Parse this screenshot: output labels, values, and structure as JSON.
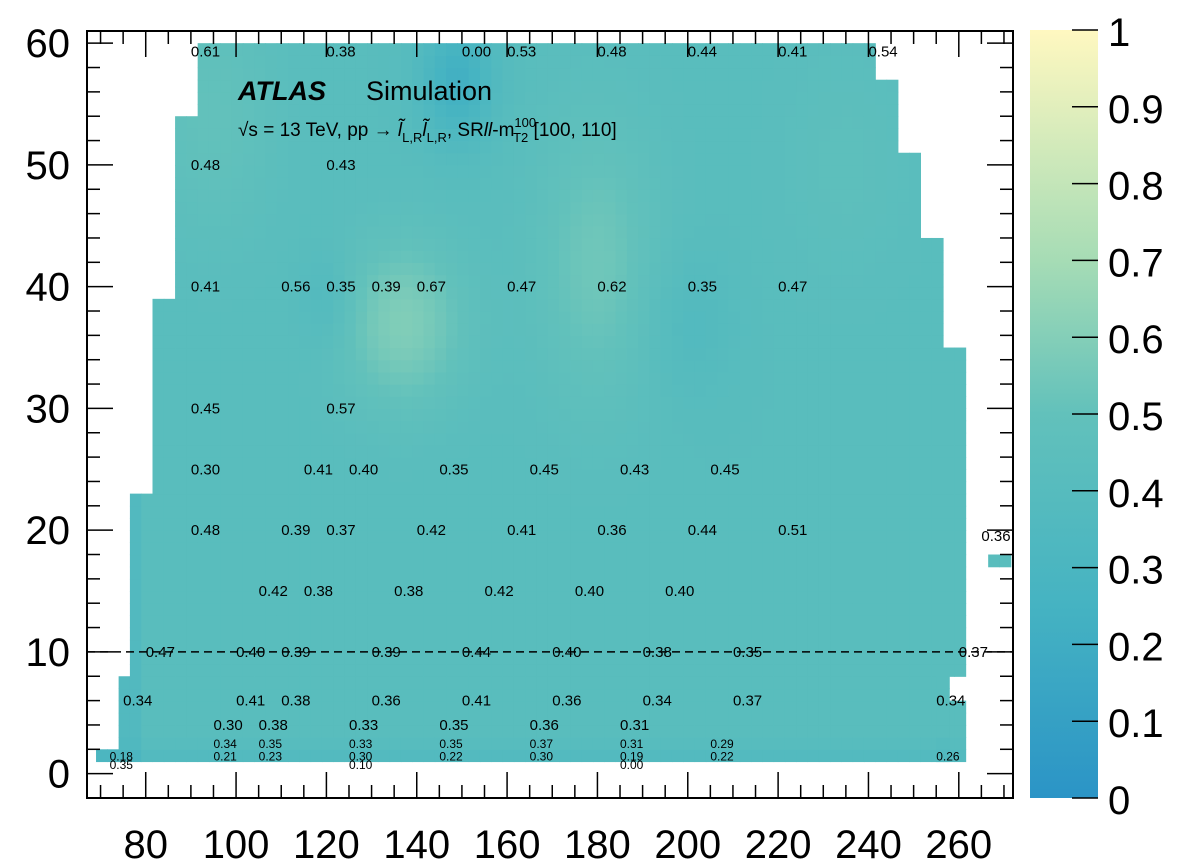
{
  "chart_data": {
    "type": "heatmap",
    "experiment": "ATLAS",
    "experiment_suffix": "Simulation",
    "subtitle": "√s = 13 TeV, pp → l̃L,R l̃L,R, SRll-mT2100 [100, 110]",
    "xlabel": "",
    "ylabel": "",
    "xlim": [
      67,
      272
    ],
    "ylim": [
      -2,
      61
    ],
    "x_ticks": [
      80,
      100,
      120,
      140,
      160,
      180,
      200,
      220,
      240,
      260
    ],
    "y_ticks": [
      0,
      10,
      20,
      30,
      40,
      50,
      60
    ],
    "z_ticks": [
      0,
      0.1,
      0.2,
      0.3,
      0.4,
      0.5,
      0.6,
      0.7,
      0.8,
      0.9,
      1
    ],
    "zlim": [
      0,
      1
    ],
    "colormap": [
      "#2b94c6",
      "#45b3c2",
      "#7fcdbb",
      "#c4e6b0",
      "#fff8c0"
    ],
    "dashed_line_y": 10,
    "labels": [
      {
        "x": 90,
        "y": 59.3,
        "text": "0.61"
      },
      {
        "x": 120,
        "y": 59.3,
        "text": "0.38"
      },
      {
        "x": 150,
        "y": 59.3,
        "text": "0.00"
      },
      {
        "x": 160,
        "y": 59.3,
        "text": "0.53"
      },
      {
        "x": 180,
        "y": 59.3,
        "text": "0.48"
      },
      {
        "x": 200,
        "y": 59.3,
        "text": "0.44"
      },
      {
        "x": 220,
        "y": 59.3,
        "text": "0.41"
      },
      {
        "x": 240,
        "y": 59.3,
        "text": "0.54"
      },
      {
        "x": 90,
        "y": 50,
        "text": "0.48"
      },
      {
        "x": 120,
        "y": 50,
        "text": "0.43"
      },
      {
        "x": 90,
        "y": 40,
        "text": "0.41"
      },
      {
        "x": 110,
        "y": 40,
        "text": "0.56"
      },
      {
        "x": 120,
        "y": 40,
        "text": "0.35"
      },
      {
        "x": 130,
        "y": 40,
        "text": "0.39"
      },
      {
        "x": 140,
        "y": 40,
        "text": "0.67"
      },
      {
        "x": 160,
        "y": 40,
        "text": "0.47"
      },
      {
        "x": 180,
        "y": 40,
        "text": "0.62"
      },
      {
        "x": 200,
        "y": 40,
        "text": "0.35"
      },
      {
        "x": 220,
        "y": 40,
        "text": "0.47"
      },
      {
        "x": 90,
        "y": 30,
        "text": "0.45"
      },
      {
        "x": 120,
        "y": 30,
        "text": "0.57"
      },
      {
        "x": 90,
        "y": 25,
        "text": "0.30"
      },
      {
        "x": 115,
        "y": 25,
        "text": "0.41"
      },
      {
        "x": 125,
        "y": 25,
        "text": "0.40"
      },
      {
        "x": 145,
        "y": 25,
        "text": "0.35"
      },
      {
        "x": 165,
        "y": 25,
        "text": "0.45"
      },
      {
        "x": 185,
        "y": 25,
        "text": "0.43"
      },
      {
        "x": 205,
        "y": 25,
        "text": "0.45"
      },
      {
        "x": 90,
        "y": 20,
        "text": "0.48"
      },
      {
        "x": 110,
        "y": 20,
        "text": "0.39"
      },
      {
        "x": 120,
        "y": 20,
        "text": "0.37"
      },
      {
        "x": 140,
        "y": 20,
        "text": "0.42"
      },
      {
        "x": 160,
        "y": 20,
        "text": "0.41"
      },
      {
        "x": 180,
        "y": 20,
        "text": "0.36"
      },
      {
        "x": 200,
        "y": 20,
        "text": "0.44"
      },
      {
        "x": 220,
        "y": 20,
        "text": "0.51"
      },
      {
        "x": 265,
        "y": 19.5,
        "text": "0.36"
      },
      {
        "x": 105,
        "y": 15,
        "text": "0.42"
      },
      {
        "x": 115,
        "y": 15,
        "text": "0.38"
      },
      {
        "x": 135,
        "y": 15,
        "text": "0.38"
      },
      {
        "x": 155,
        "y": 15,
        "text": "0.42"
      },
      {
        "x": 175,
        "y": 15,
        "text": "0.40"
      },
      {
        "x": 195,
        "y": 15,
        "text": "0.40"
      },
      {
        "x": 80,
        "y": 10,
        "text": "0.47"
      },
      {
        "x": 100,
        "y": 10,
        "text": "0.40"
      },
      {
        "x": 110,
        "y": 10,
        "text": "0.39"
      },
      {
        "x": 130,
        "y": 10,
        "text": "0.39"
      },
      {
        "x": 150,
        "y": 10,
        "text": "0.44"
      },
      {
        "x": 170,
        "y": 10,
        "text": "0.40"
      },
      {
        "x": 190,
        "y": 10,
        "text": "0.38"
      },
      {
        "x": 210,
        "y": 10,
        "text": "0.35"
      },
      {
        "x": 260,
        "y": 10,
        "text": "0.37"
      },
      {
        "x": 75,
        "y": 6,
        "text": "0.34"
      },
      {
        "x": 100,
        "y": 6,
        "text": "0.41"
      },
      {
        "x": 110,
        "y": 6,
        "text": "0.38"
      },
      {
        "x": 130,
        "y": 6,
        "text": "0.36"
      },
      {
        "x": 150,
        "y": 6,
        "text": "0.41"
      },
      {
        "x": 170,
        "y": 6,
        "text": "0.36"
      },
      {
        "x": 190,
        "y": 6,
        "text": "0.34"
      },
      {
        "x": 210,
        "y": 6,
        "text": "0.37"
      },
      {
        "x": 255,
        "y": 6,
        "text": "0.34"
      },
      {
        "x": 95,
        "y": 4,
        "text": "0.30"
      },
      {
        "x": 105,
        "y": 4,
        "text": "0.38"
      },
      {
        "x": 125,
        "y": 4,
        "text": "0.33"
      },
      {
        "x": 145,
        "y": 4,
        "text": "0.35"
      },
      {
        "x": 165,
        "y": 4,
        "text": "0.36"
      },
      {
        "x": 185,
        "y": 4,
        "text": "0.31"
      },
      {
        "x": 95,
        "y": 2.5,
        "text": "0.34",
        "small": true
      },
      {
        "x": 105,
        "y": 2.5,
        "text": "0.35",
        "small": true
      },
      {
        "x": 125,
        "y": 2.5,
        "text": "0.33",
        "small": true
      },
      {
        "x": 145,
        "y": 2.5,
        "text": "0.35",
        "small": true
      },
      {
        "x": 165,
        "y": 2.5,
        "text": "0.37",
        "small": true
      },
      {
        "x": 185,
        "y": 2.5,
        "text": "0.31",
        "small": true
      },
      {
        "x": 205,
        "y": 2.5,
        "text": "0.29",
        "small": true
      },
      {
        "x": 72,
        "y": 1.5,
        "text": "0.18",
        "small": true
      },
      {
        "x": 95,
        "y": 1.5,
        "text": "0.21",
        "small": true
      },
      {
        "x": 105,
        "y": 1.5,
        "text": "0.23",
        "small": true
      },
      {
        "x": 125,
        "y": 1.5,
        "text": "0.30",
        "small": true
      },
      {
        "x": 145,
        "y": 1.5,
        "text": "0.22",
        "small": true
      },
      {
        "x": 165,
        "y": 1.5,
        "text": "0.30",
        "small": true
      },
      {
        "x": 185,
        "y": 1.5,
        "text": "0.19",
        "small": true
      },
      {
        "x": 205,
        "y": 1.5,
        "text": "0.22",
        "small": true
      },
      {
        "x": 255,
        "y": 1.5,
        "text": "0.26",
        "small": true
      },
      {
        "x": 72,
        "y": 0.8,
        "text": "0.35",
        "small": true
      },
      {
        "x": 125,
        "y": 0.8,
        "text": "0.10",
        "small": true
      },
      {
        "x": 185,
        "y": 0.8,
        "text": "0.00",
        "small": true
      }
    ]
  }
}
